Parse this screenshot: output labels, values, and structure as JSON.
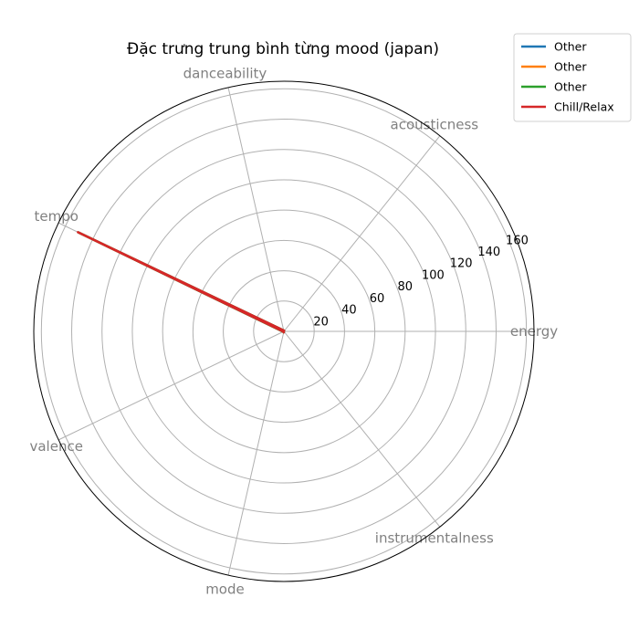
{
  "chart_data": {
    "type": "radar",
    "title": "Đặc trưng trung bình từng mood (japan)",
    "axes": [
      "energy",
      "acousticness",
      "danceability",
      "tempo",
      "valence",
      "mode",
      "instrumentalness"
    ],
    "rlim": [
      0,
      165
    ],
    "rticks": [
      20,
      40,
      60,
      80,
      100,
      120,
      140,
      160
    ],
    "grid": true,
    "legend_position": "top-right",
    "series": [
      {
        "name": "Other",
        "color": "#1f77b4",
        "values": [
          0.6,
          0.3,
          0.6,
          150.2,
          0.5,
          0.7,
          0.05
        ]
      },
      {
        "name": "Other",
        "color": "#ff7f0e",
        "values": [
          0.6,
          0.3,
          0.6,
          150.4,
          0.5,
          0.7,
          0.05
        ]
      },
      {
        "name": "Other",
        "color": "#2ca02c",
        "values": [
          0.6,
          0.3,
          0.6,
          150.6,
          0.5,
          0.7,
          0.05
        ]
      },
      {
        "name": "Chill/Relax",
        "color": "#d62728",
        "values": [
          0.5,
          0.4,
          0.6,
          150.8,
          0.4,
          0.7,
          0.05
        ]
      }
    ]
  }
}
